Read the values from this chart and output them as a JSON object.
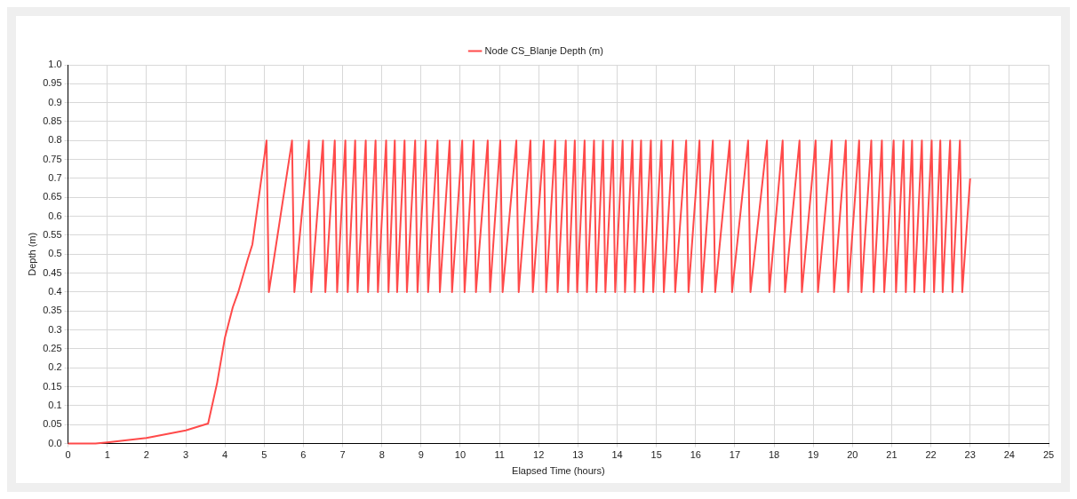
{
  "chart_data": {
    "type": "line",
    "xlabel": "Elapsed Time (hours)",
    "ylabel": "Depth (m)",
    "legend": "top",
    "grid": true,
    "marker": "none",
    "line_style": "solid",
    "xlim": [
      0,
      25
    ],
    "xticks": [
      0,
      1,
      2,
      3,
      4,
      5,
      6,
      7,
      8,
      9,
      10,
      11,
      12,
      13,
      14,
      15,
      16,
      17,
      18,
      19,
      20,
      21,
      22,
      23,
      24,
      25
    ],
    "ylim": [
      0,
      1
    ],
    "yticks": [
      {
        "value": 0,
        "label": "0.0"
      },
      0.05,
      0.1,
      0.15,
      0.2,
      0.25,
      0.3,
      0.35,
      0.4,
      0.45,
      0.5,
      0.55,
      0.6,
      0.65,
      0.7,
      0.75,
      0.8,
      0.85,
      0.9,
      0.95,
      {
        "value": 1,
        "label": "1.0"
      }
    ],
    "series": [
      {
        "name": "Node CS_Blanje Depth (m)",
        "color": "#ff4a4a",
        "x": [
          0,
          0.7,
          1,
          2,
          3,
          3.57,
          3.8,
          4.0,
          4.2,
          4.34,
          4.58,
          4.7,
          4.85,
          5.06,
          5.12,
          5.71,
          5.77,
          6.14,
          6.2,
          6.5,
          6.56,
          6.8,
          6.86,
          7.07,
          7.13,
          7.32,
          7.38,
          7.59,
          7.65,
          7.84,
          7.9,
          8.11,
          8.17,
          8.33,
          8.39,
          8.58,
          8.64,
          8.85,
          8.91,
          9.12,
          9.18,
          9.42,
          9.48,
          9.73,
          9.79,
          10.05,
          10.11,
          10.34,
          10.4,
          10.7,
          10.76,
          11.02,
          11.08,
          11.43,
          11.49,
          11.79,
          11.85,
          12.13,
          12.19,
          12.42,
          12.48,
          12.69,
          12.75,
          12.92,
          12.98,
          13.17,
          13.23,
          13.41,
          13.47,
          13.64,
          13.7,
          13.89,
          13.95,
          14.14,
          14.2,
          14.39,
          14.45,
          14.61,
          14.67,
          14.86,
          14.92,
          15.13,
          15.19,
          15.42,
          15.48,
          15.76,
          15.82,
          16.1,
          16.16,
          16.44,
          16.5,
          16.87,
          16.93,
          17.34,
          17.4,
          17.82,
          17.88,
          18.22,
          18.28,
          18.65,
          18.71,
          19.06,
          19.12,
          19.47,
          19.53,
          19.83,
          19.89,
          20.17,
          20.23,
          20.48,
          20.54,
          20.75,
          20.81,
          21.05,
          21.11,
          21.3,
          21.36,
          21.52,
          21.58,
          21.77,
          21.83,
          22.02,
          22.08,
          22.24,
          22.3,
          22.49,
          22.55,
          22.74,
          22.8,
          23.0
        ],
        "values": [
          0,
          0,
          0.003,
          0.015,
          0.035,
          0.053,
          0.16,
          0.28,
          0.36,
          0.4,
          0.486,
          0.526,
          0.64,
          0.8,
          0.4,
          0.8,
          0.4,
          0.8,
          0.4,
          0.8,
          0.4,
          0.8,
          0.4,
          0.8,
          0.4,
          0.8,
          0.4,
          0.8,
          0.4,
          0.8,
          0.4,
          0.8,
          0.4,
          0.8,
          0.4,
          0.8,
          0.4,
          0.8,
          0.4,
          0.8,
          0.4,
          0.8,
          0.4,
          0.8,
          0.4,
          0.8,
          0.4,
          0.8,
          0.4,
          0.8,
          0.4,
          0.8,
          0.4,
          0.8,
          0.4,
          0.8,
          0.4,
          0.8,
          0.4,
          0.8,
          0.4,
          0.8,
          0.4,
          0.8,
          0.4,
          0.8,
          0.4,
          0.8,
          0.4,
          0.8,
          0.4,
          0.8,
          0.4,
          0.8,
          0.4,
          0.8,
          0.4,
          0.8,
          0.4,
          0.8,
          0.4,
          0.8,
          0.4,
          0.8,
          0.4,
          0.8,
          0.4,
          0.8,
          0.4,
          0.8,
          0.4,
          0.8,
          0.4,
          0.8,
          0.4,
          0.8,
          0.4,
          0.8,
          0.4,
          0.8,
          0.4,
          0.8,
          0.4,
          0.8,
          0.4,
          0.8,
          0.4,
          0.8,
          0.4,
          0.8,
          0.4,
          0.8,
          0.4,
          0.8,
          0.4,
          0.8,
          0.4,
          0.8,
          0.4,
          0.8,
          0.4,
          0.8,
          0.4,
          0.8,
          0.4,
          0.8,
          0.4,
          0.8,
          0.4,
          0.7
        ]
      }
    ]
  }
}
